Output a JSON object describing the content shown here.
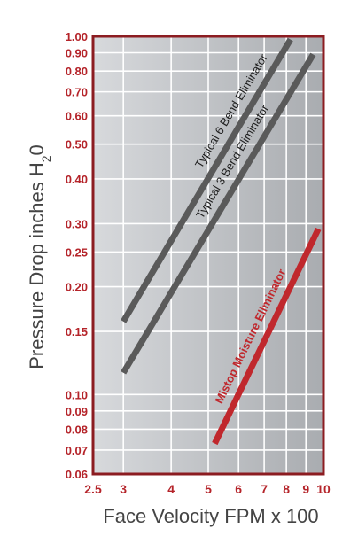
{
  "chart_data": {
    "type": "line",
    "xlabel": "Face Velocity FPM x 100",
    "ylabel_main": "Pressure Drop inches H",
    "ylabel_sub": "2",
    "ylabel_tail": "0",
    "x_scale": "log",
    "y_scale": "log",
    "xlim": [
      2.5,
      10
    ],
    "ylim": [
      0.06,
      1.0
    ],
    "grid": true,
    "x_ticks": [
      {
        "value": 2.5,
        "label": "2.5"
      },
      {
        "value": 3,
        "label": "3"
      },
      {
        "value": 4,
        "label": "4"
      },
      {
        "value": 5,
        "label": "5"
      },
      {
        "value": 6,
        "label": "6"
      },
      {
        "value": 7,
        "label": "7"
      },
      {
        "value": 8,
        "label": "8"
      },
      {
        "value": 9,
        "label": "9"
      },
      {
        "value": 10,
        "label": "10"
      }
    ],
    "y_ticks": [
      {
        "value": 1.0,
        "label": "1.00"
      },
      {
        "value": 0.9,
        "label": "0.90"
      },
      {
        "value": 0.8,
        "label": "0.80"
      },
      {
        "value": 0.7,
        "label": "0.70"
      },
      {
        "value": 0.6,
        "label": "0.60"
      },
      {
        "value": 0.5,
        "label": "0.50"
      },
      {
        "value": 0.4,
        "label": "0.40"
      },
      {
        "value": 0.3,
        "label": "0.30"
      },
      {
        "value": 0.25,
        "label": "0.25"
      },
      {
        "value": 0.2,
        "label": "0.20"
      },
      {
        "value": 0.15,
        "label": "0.15"
      },
      {
        "value": 0.1,
        "label": "0.10"
      },
      {
        "value": 0.09,
        "label": "0.09"
      },
      {
        "value": 0.08,
        "label": "0.08"
      },
      {
        "value": 0.07,
        "label": "0.07"
      },
      {
        "value": 0.06,
        "label": "0.06"
      }
    ],
    "series": [
      {
        "name": "Typical 6 Bend Eliminator",
        "color": "#5a5a5a",
        "x": [
          3.0,
          8.2
        ],
        "y": [
          0.16,
          0.98
        ]
      },
      {
        "name": "Typical 3 Bend Eliminator",
        "color": "#5a5a5a",
        "x": [
          3.0,
          9.4
        ],
        "y": [
          0.115,
          0.89
        ]
      },
      {
        "name": "Mistop Moisture Eliminator",
        "color": "#c0282d",
        "x": [
          5.2,
          9.7
        ],
        "y": [
          0.073,
          0.29
        ]
      }
    ]
  },
  "colors": {
    "tick_label": "#b5242a",
    "axis_title": "#444444",
    "plot_gradient_left": "#d7d9dc",
    "plot_gradient_right": "#a9acb0",
    "frame": "#8c1c21",
    "grid": "#ffffff"
  }
}
